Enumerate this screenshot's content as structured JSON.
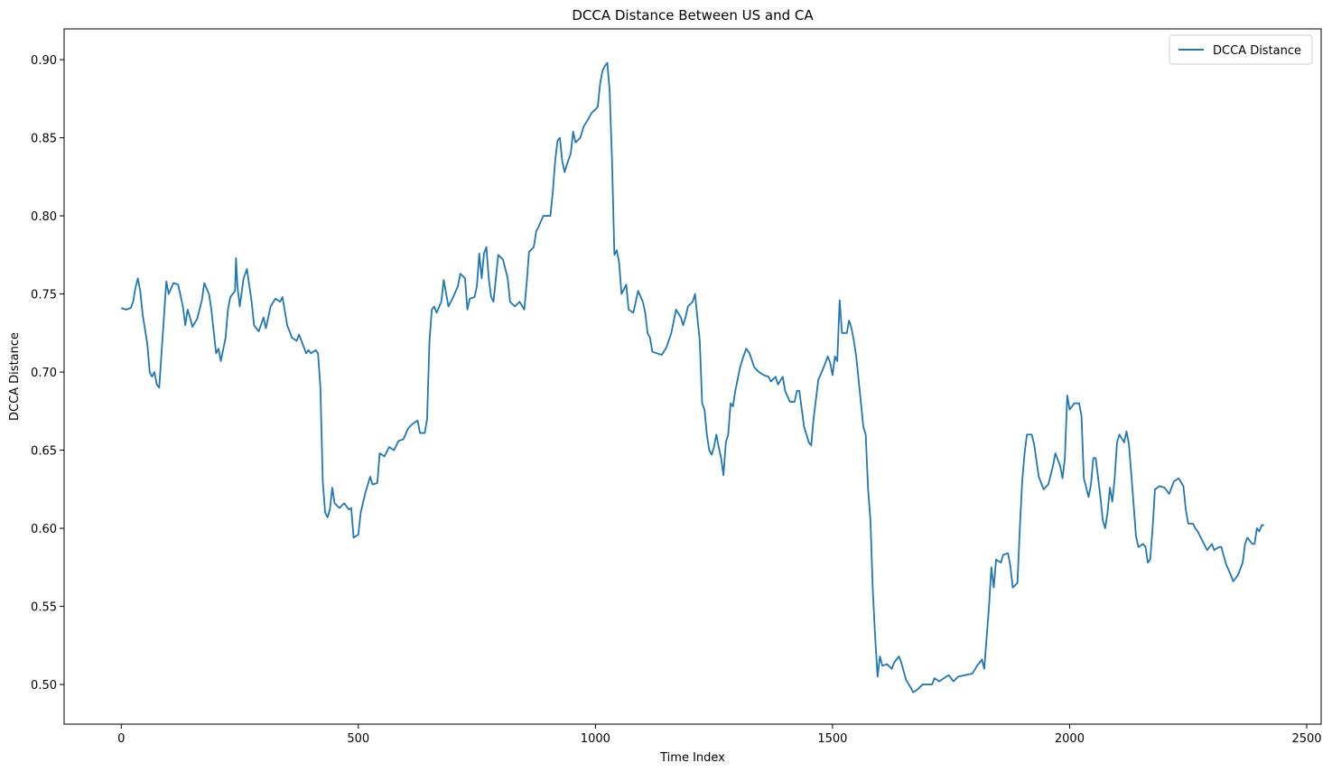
{
  "chart_data": {
    "type": "line",
    "title": "DCCA Distance Between US and CA",
    "x_label": "Time Index",
    "y_label": "DCCA Distance",
    "x": [
      0,
      10,
      20,
      25,
      30,
      35,
      40,
      45,
      55,
      60,
      65,
      70,
      75,
      80,
      90,
      95,
      100,
      110,
      120,
      130,
      135,
      140,
      145,
      150,
      160,
      170,
      175,
      185,
      190,
      200,
      205,
      210,
      220,
      225,
      230,
      240,
      242,
      245,
      250,
      258,
      265,
      275,
      280,
      290,
      300,
      305,
      315,
      325,
      335,
      340,
      350,
      360,
      370,
      375,
      380,
      390,
      395,
      400,
      410,
      415,
      420,
      425,
      430,
      435,
      440,
      445,
      450,
      460,
      470,
      480,
      485,
      490,
      500,
      505,
      515,
      525,
      530,
      540,
      545,
      555,
      565,
      575,
      585,
      595,
      605,
      615,
      625,
      630,
      640,
      645,
      650,
      655,
      660,
      665,
      675,
      680,
      690,
      700,
      710,
      715,
      725,
      730,
      735,
      745,
      750,
      755,
      760,
      765,
      770,
      775,
      780,
      785,
      790,
      795,
      805,
      815,
      820,
      830,
      840,
      850,
      855,
      860,
      870,
      875,
      880,
      890,
      900,
      905,
      910,
      915,
      920,
      925,
      930,
      935,
      940,
      948,
      953,
      958,
      968,
      975,
      985,
      992,
      1000,
      1005,
      1010,
      1015,
      1020,
      1025,
      1030,
      1035,
      1040,
      1045,
      1050,
      1055,
      1065,
      1070,
      1080,
      1090,
      1100,
      1105,
      1110,
      1115,
      1120,
      1130,
      1140,
      1150,
      1160,
      1170,
      1180,
      1185,
      1190,
      1195,
      1205,
      1210,
      1220,
      1225,
      1230,
      1235,
      1240,
      1245,
      1250,
      1255,
      1260,
      1265,
      1270,
      1275,
      1280,
      1285,
      1290,
      1295,
      1305,
      1310,
      1318,
      1325,
      1335,
      1345,
      1355,
      1365,
      1370,
      1380,
      1385,
      1395,
      1400,
      1410,
      1420,
      1425,
      1430,
      1440,
      1450,
      1455,
      1460,
      1470,
      1480,
      1490,
      1495,
      1500,
      1505,
      1510,
      1515,
      1520,
      1530,
      1535,
      1540,
      1545,
      1550,
      1555,
      1560,
      1565,
      1570,
      1575,
      1580,
      1585,
      1590,
      1595,
      1600,
      1605,
      1615,
      1625,
      1630,
      1640,
      1645,
      1655,
      1665,
      1670,
      1680,
      1690,
      1700,
      1710,
      1715,
      1725,
      1735,
      1745,
      1755,
      1765,
      1780,
      1795,
      1805,
      1815,
      1820,
      1825,
      1830,
      1835,
      1840,
      1845,
      1855,
      1860,
      1870,
      1875,
      1880,
      1890,
      1895,
      1900,
      1905,
      1910,
      1920,
      1925,
      1935,
      1945,
      1955,
      1965,
      1970,
      1980,
      1985,
      1990,
      1995,
      2000,
      2010,
      2020,
      2025,
      2030,
      2035,
      2040,
      2045,
      2050,
      2055,
      2065,
      2070,
      2075,
      2080,
      2085,
      2090,
      2095,
      2100,
      2105,
      2115,
      2120,
      2125,
      2130,
      2135,
      2140,
      2145,
      2155,
      2160,
      2165,
      2170,
      2175,
      2180,
      2190,
      2200,
      2210,
      2220,
      2230,
      2240,
      2245,
      2250,
      2260,
      2265,
      2270,
      2280,
      2290,
      2300,
      2305,
      2315,
      2320,
      2330,
      2340,
      2345,
      2355,
      2365,
      2370,
      2375,
      2385,
      2390,
      2395,
      2400,
      2405,
      2410
    ],
    "series": [
      {
        "name": "DCCA Distance",
        "color": "#1f77b4",
        "values": [
          0.741,
          0.74,
          0.741,
          0.745,
          0.754,
          0.76,
          0.752,
          0.737,
          0.718,
          0.7,
          0.697,
          0.7,
          0.692,
          0.69,
          0.735,
          0.758,
          0.75,
          0.757,
          0.756,
          0.742,
          0.73,
          0.74,
          0.735,
          0.729,
          0.734,
          0.746,
          0.757,
          0.75,
          0.74,
          0.712,
          0.715,
          0.707,
          0.722,
          0.74,
          0.748,
          0.752,
          0.773,
          0.755,
          0.742,
          0.76,
          0.766,
          0.745,
          0.73,
          0.726,
          0.735,
          0.728,
          0.742,
          0.747,
          0.745,
          0.748,
          0.73,
          0.722,
          0.72,
          0.724,
          0.72,
          0.712,
          0.714,
          0.712,
          0.714,
          0.712,
          0.69,
          0.63,
          0.61,
          0.607,
          0.612,
          0.626,
          0.616,
          0.613,
          0.616,
          0.612,
          0.613,
          0.594,
          0.596,
          0.61,
          0.623,
          0.633,
          0.628,
          0.629,
          0.648,
          0.646,
          0.652,
          0.65,
          0.656,
          0.657,
          0.664,
          0.667,
          0.669,
          0.661,
          0.661,
          0.67,
          0.72,
          0.74,
          0.742,
          0.738,
          0.745,
          0.759,
          0.742,
          0.748,
          0.755,
          0.763,
          0.76,
          0.74,
          0.747,
          0.748,
          0.755,
          0.776,
          0.76,
          0.776,
          0.78,
          0.76,
          0.748,
          0.745,
          0.76,
          0.775,
          0.772,
          0.76,
          0.745,
          0.742,
          0.745,
          0.74,
          0.757,
          0.777,
          0.78,
          0.79,
          0.793,
          0.8,
          0.8,
          0.8,
          0.815,
          0.835,
          0.848,
          0.85,
          0.835,
          0.828,
          0.833,
          0.84,
          0.854,
          0.847,
          0.85,
          0.857,
          0.862,
          0.866,
          0.868,
          0.87,
          0.885,
          0.893,
          0.896,
          0.898,
          0.88,
          0.835,
          0.775,
          0.778,
          0.77,
          0.75,
          0.756,
          0.74,
          0.738,
          0.752,
          0.745,
          0.738,
          0.725,
          0.722,
          0.713,
          0.712,
          0.711,
          0.716,
          0.725,
          0.74,
          0.735,
          0.73,
          0.735,
          0.742,
          0.745,
          0.75,
          0.72,
          0.68,
          0.676,
          0.66,
          0.65,
          0.647,
          0.652,
          0.66,
          0.652,
          0.645,
          0.634,
          0.655,
          0.66,
          0.68,
          0.678,
          0.688,
          0.703,
          0.708,
          0.715,
          0.712,
          0.703,
          0.7,
          0.698,
          0.697,
          0.694,
          0.697,
          0.692,
          0.697,
          0.688,
          0.681,
          0.681,
          0.688,
          0.688,
          0.665,
          0.655,
          0.653,
          0.67,
          0.695,
          0.702,
          0.71,
          0.706,
          0.698,
          0.71,
          0.707,
          0.746,
          0.725,
          0.725,
          0.733,
          0.728,
          0.72,
          0.71,
          0.695,
          0.68,
          0.665,
          0.66,
          0.625,
          0.605,
          0.56,
          0.53,
          0.505,
          0.518,
          0.512,
          0.513,
          0.51,
          0.514,
          0.518,
          0.514,
          0.503,
          0.498,
          0.495,
          0.497,
          0.5,
          0.5,
          0.5,
          0.504,
          0.502,
          0.504,
          0.506,
          0.502,
          0.505,
          0.506,
          0.507,
          0.512,
          0.516,
          0.51,
          0.53,
          0.55,
          0.575,
          0.562,
          0.58,
          0.578,
          0.583,
          0.584,
          0.576,
          0.562,
          0.565,
          0.6,
          0.63,
          0.648,
          0.66,
          0.66,
          0.654,
          0.633,
          0.625,
          0.628,
          0.64,
          0.648,
          0.64,
          0.632,
          0.645,
          0.685,
          0.676,
          0.68,
          0.68,
          0.672,
          0.632,
          0.626,
          0.62,
          0.628,
          0.645,
          0.645,
          0.62,
          0.605,
          0.6,
          0.61,
          0.626,
          0.617,
          0.632,
          0.655,
          0.66,
          0.655,
          0.662,
          0.654,
          0.635,
          0.615,
          0.595,
          0.588,
          0.59,
          0.588,
          0.578,
          0.58,
          0.6,
          0.625,
          0.627,
          0.626,
          0.622,
          0.63,
          0.632,
          0.627,
          0.612,
          0.603,
          0.603,
          0.6,
          0.598,
          0.592,
          0.586,
          0.59,
          0.586,
          0.588,
          0.588,
          0.577,
          0.57,
          0.566,
          0.57,
          0.578,
          0.59,
          0.594,
          0.59,
          0.59,
          0.6,
          0.598,
          0.602,
          0.602
        ]
      }
    ],
    "xlim": [
      -120.5,
      2530.5
    ],
    "ylim": [
      0.4746,
      0.9197
    ],
    "xticks": [
      0,
      500,
      1000,
      1500,
      2000,
      2500
    ],
    "yticks": [
      {
        "value": 0.5,
        "label": "0.50"
      },
      0.55,
      {
        "value": 0.6,
        "label": "0.60"
      },
      0.65,
      {
        "value": 0.7,
        "label": "0.70"
      },
      0.75,
      {
        "value": 0.8,
        "label": "0.80"
      },
      0.85,
      {
        "value": 0.9,
        "label": "0.90"
      }
    ],
    "legend": "upper right"
  }
}
